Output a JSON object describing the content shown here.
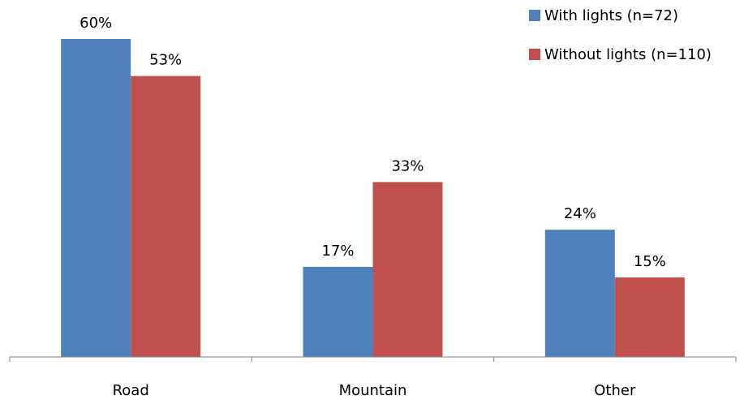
{
  "chart_data": {
    "type": "bar",
    "categories": [
      "Road",
      "Mountain",
      "Other"
    ],
    "series": [
      {
        "name": "With lights (n=72)",
        "values": [
          60,
          17,
          24
        ],
        "labels": [
          "60%",
          "17%",
          "24%"
        ],
        "color": "#4F81BD"
      },
      {
        "name": "Without lights (n=110)",
        "values": [
          53,
          33,
          15
        ],
        "labels": [
          "53%",
          "33%",
          "15%"
        ],
        "color": "#C0504D"
      }
    ],
    "ylim": [
      0,
      60
    ],
    "grid": false,
    "legend": "top-right",
    "value_unit": "%"
  }
}
